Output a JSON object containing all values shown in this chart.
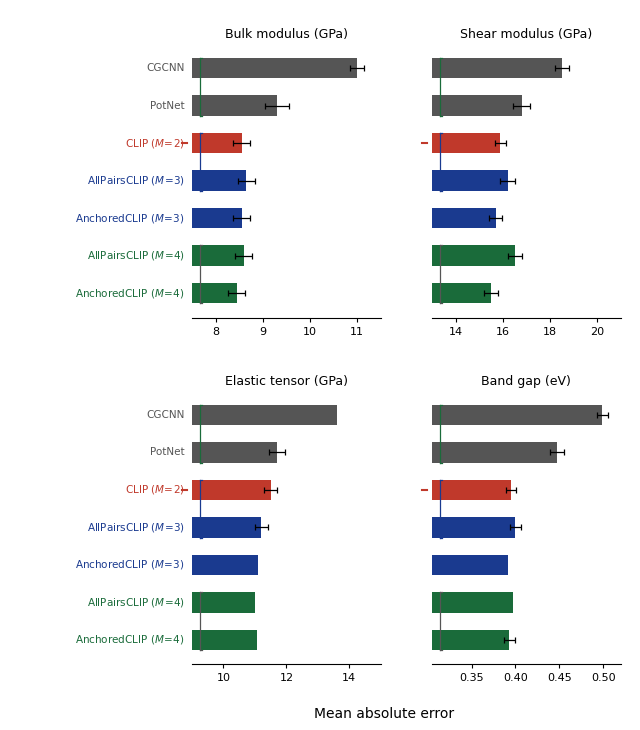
{
  "subplots": [
    {
      "title": "Bulk modulus (GPa)",
      "xlim": [
        7.5,
        11.5
      ],
      "xticks": [
        8,
        9,
        10,
        11
      ],
      "bars": [
        {
          "label": "CGCNN",
          "value": 11.0,
          "err": 0.15,
          "color": "#555555",
          "group": "baseline"
        },
        {
          "label": "PotNet",
          "value": 9.3,
          "err": 0.25,
          "color": "#555555",
          "group": "baseline"
        },
        {
          "label": "CLIP ($M\\!=\\!2$)",
          "value": 8.55,
          "err": 0.18,
          "color": "#c0392b",
          "group": "clip2"
        },
        {
          "label": "AllPairsCLIP ($M\\!=\\!3$)",
          "value": 8.65,
          "err": 0.18,
          "color": "#1a3a8f",
          "group": "m3"
        },
        {
          "label": "AnchoredCLIP ($M\\!=\\!3$)",
          "value": 8.55,
          "err": 0.18,
          "color": "#1a3a8f",
          "group": "m3"
        },
        {
          "label": "AllPairsCLIP ($M\\!=\\!4$)",
          "value": 8.6,
          "err": 0.18,
          "color": "#1a6b3a",
          "group": "m4"
        },
        {
          "label": "AnchoredCLIP ($M\\!=\\!4$)",
          "value": 8.45,
          "err": 0.18,
          "color": "#1a6b3a",
          "group": "m4"
        }
      ]
    },
    {
      "title": "Shear modulus (GPa)",
      "xlim": [
        13.0,
        21.0
      ],
      "xticks": [
        14,
        16,
        18,
        20
      ],
      "bars": [
        {
          "label": "CGCNN",
          "value": 18.5,
          "err": 0.3,
          "color": "#555555",
          "group": "baseline"
        },
        {
          "label": "PotNet",
          "value": 16.8,
          "err": 0.35,
          "color": "#555555",
          "group": "baseline"
        },
        {
          "label": "CLIP ($M\\!=\\!2$)",
          "value": 15.9,
          "err": 0.25,
          "color": "#c0392b",
          "group": "clip2"
        },
        {
          "label": "AllPairsCLIP ($M\\!=\\!3$)",
          "value": 16.2,
          "err": 0.3,
          "color": "#1a3a8f",
          "group": "m3"
        },
        {
          "label": "AnchoredCLIP ($M\\!=\\!3$)",
          "value": 15.7,
          "err": 0.28,
          "color": "#1a3a8f",
          "group": "m3"
        },
        {
          "label": "AllPairsCLIP ($M\\!=\\!4$)",
          "value": 16.5,
          "err": 0.3,
          "color": "#1a6b3a",
          "group": "m4"
        },
        {
          "label": "AnchoredCLIP ($M\\!=\\!4$)",
          "value": 15.5,
          "err": 0.28,
          "color": "#1a6b3a",
          "group": "m4"
        }
      ]
    },
    {
      "title": "Elastic tensor (GPa)",
      "xlim": [
        9.0,
        15.0
      ],
      "xticks": [
        10,
        12,
        14
      ],
      "bars": [
        {
          "label": "CGCNN",
          "value": 13.6,
          "err": 0.0,
          "color": "#555555",
          "group": "baseline"
        },
        {
          "label": "PotNet",
          "value": 11.7,
          "err": 0.25,
          "color": "#555555",
          "group": "baseline"
        },
        {
          "label": "CLIP ($M\\!=\\!2$)",
          "value": 11.5,
          "err": 0.2,
          "color": "#c0392b",
          "group": "clip2"
        },
        {
          "label": "AllPairsCLIP ($M\\!=\\!3$)",
          "value": 11.2,
          "err": 0.2,
          "color": "#1a3a8f",
          "group": "m3"
        },
        {
          "label": "AnchoredCLIP ($M\\!=\\!3$)",
          "value": 11.1,
          "err": 0.0,
          "color": "#1a3a8f",
          "group": "m3"
        },
        {
          "label": "AllPairsCLIP ($M\\!=\\!4$)",
          "value": 11.0,
          "err": 0.0,
          "color": "#1a6b3a",
          "group": "m4"
        },
        {
          "label": "AnchoredCLIP ($M\\!=\\!4$)",
          "value": 11.05,
          "err": 0.0,
          "color": "#1a6b3a",
          "group": "m4"
        }
      ]
    },
    {
      "title": "Band gap (eV)",
      "xlim": [
        0.305,
        0.52
      ],
      "xticks": [
        0.35,
        0.4,
        0.45,
        0.5
      ],
      "bars": [
        {
          "label": "CGCNN",
          "value": 0.499,
          "err": 0.006,
          "color": "#555555",
          "group": "baseline"
        },
        {
          "label": "PotNet",
          "value": 0.447,
          "err": 0.008,
          "color": "#555555",
          "group": "baseline"
        },
        {
          "label": "CLIP ($M\\!=\\!2$)",
          "value": 0.395,
          "err": 0.006,
          "color": "#c0392b",
          "group": "clip2"
        },
        {
          "label": "AllPairsCLIP ($M\\!=\\!3$)",
          "value": 0.4,
          "err": 0.006,
          "color": "#1a3a8f",
          "group": "m3"
        },
        {
          "label": "AnchoredCLIP ($M\\!=\\!3$)",
          "value": 0.392,
          "err": 0.0,
          "color": "#1a3a8f",
          "group": "m3"
        },
        {
          "label": "AllPairsCLIP ($M\\!=\\!4$)",
          "value": 0.397,
          "err": 0.0,
          "color": "#1a6b3a",
          "group": "m4"
        },
        {
          "label": "AnchoredCLIP ($M\\!=\\!4$)",
          "value": 0.393,
          "err": 0.006,
          "color": "#1a6b3a",
          "group": "m4"
        }
      ]
    }
  ],
  "bar_height": 0.55,
  "ylabel_text": "Mean absolute error",
  "label_texts": [
    [
      "CGCNN",
      "#555555"
    ],
    [
      "PotNet",
      "#555555"
    ],
    [
      "CLIP ($M\\!=\\!2$)",
      "#c0392b"
    ],
    [
      "AllPairsCLIP ($M\\!=\\!3$)",
      "#1a3a8f"
    ],
    [
      "AnchoredCLIP ($M\\!=\\!3$)",
      "#1a3a8f"
    ],
    [
      "AllPairsCLIP ($M\\!=\\!4$)",
      "#1a6b3a"
    ],
    [
      "AnchoredCLIP ($M\\!=\\!4$)",
      "#1a6b3a"
    ]
  ],
  "bracket_groups": [
    {
      "bars": [
        6,
        5
      ],
      "color": "#555555"
    },
    {
      "bars": [
        3,
        2
      ],
      "color": "#1a3a8f"
    },
    {
      "bars": [
        1,
        0
      ],
      "color": "#1a6b3a"
    }
  ]
}
